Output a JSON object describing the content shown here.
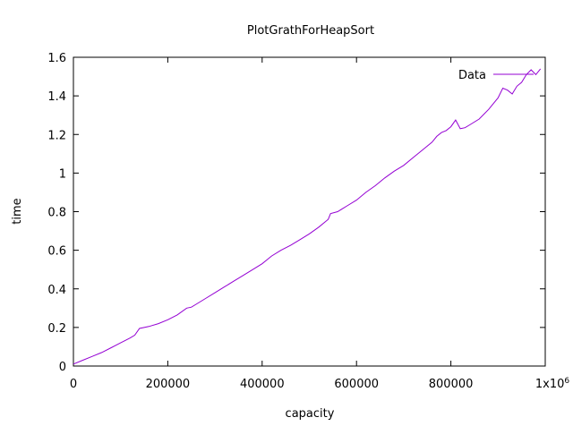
{
  "chart_data": {
    "type": "line",
    "title": "PlotGrathForHeapSort",
    "xlabel": "capacity",
    "ylabel": "time",
    "xlim": [
      0,
      1000000
    ],
    "ylim": [
      0,
      1.6
    ],
    "x_ticks": [
      {
        "value": 0,
        "label": "0"
      },
      {
        "value": 200000,
        "label": "200000"
      },
      {
        "value": 400000,
        "label": "400000"
      },
      {
        "value": 600000,
        "label": "600000"
      },
      {
        "value": 800000,
        "label": "800000"
      }
    ],
    "x_end_label": {
      "base": "1x10",
      "exp": "6"
    },
    "y_ticks": [
      {
        "value": 0,
        "label": "0"
      },
      {
        "value": 0.2,
        "label": "0.2"
      },
      {
        "value": 0.4,
        "label": "0.4"
      },
      {
        "value": 0.6,
        "label": "0.6"
      },
      {
        "value": 0.8,
        "label": "0.8"
      },
      {
        "value": 1.0,
        "label": "1"
      },
      {
        "value": 1.2,
        "label": "1.2"
      },
      {
        "value": 1.4,
        "label": "1.4"
      },
      {
        "value": 1.6,
        "label": "1.6"
      }
    ],
    "legend": {
      "position": "top-right"
    },
    "colors": {
      "series": "#9400d3",
      "axis": "#000000"
    },
    "series": [
      {
        "name": "Data",
        "x": [
          0,
          20000,
          40000,
          60000,
          80000,
          100000,
          120000,
          130000,
          140000,
          150000,
          160000,
          180000,
          200000,
          220000,
          240000,
          250000,
          260000,
          280000,
          300000,
          320000,
          340000,
          360000,
          380000,
          400000,
          410000,
          420000,
          440000,
          460000,
          480000,
          500000,
          520000,
          540000,
          545000,
          560000,
          580000,
          600000,
          620000,
          640000,
          660000,
          680000,
          700000,
          720000,
          740000,
          760000,
          770000,
          780000,
          790000,
          800000,
          810000,
          820000,
          830000,
          840000,
          860000,
          880000,
          900000,
          910000,
          920000,
          930000,
          940000,
          950000,
          960000,
          970000,
          980000,
          990000
        ],
        "y": [
          0.01,
          0.03,
          0.05,
          0.07,
          0.095,
          0.12,
          0.145,
          0.16,
          0.195,
          0.2,
          0.205,
          0.22,
          0.24,
          0.265,
          0.3,
          0.305,
          0.32,
          0.35,
          0.38,
          0.41,
          0.44,
          0.47,
          0.5,
          0.53,
          0.55,
          0.57,
          0.6,
          0.625,
          0.655,
          0.685,
          0.72,
          0.76,
          0.79,
          0.8,
          0.83,
          0.86,
          0.9,
          0.935,
          0.975,
          1.01,
          1.04,
          1.08,
          1.12,
          1.16,
          1.19,
          1.21,
          1.22,
          1.24,
          1.275,
          1.23,
          1.235,
          1.25,
          1.28,
          1.33,
          1.39,
          1.44,
          1.43,
          1.41,
          1.45,
          1.47,
          1.51,
          1.535,
          1.51,
          1.54
        ]
      }
    ]
  }
}
